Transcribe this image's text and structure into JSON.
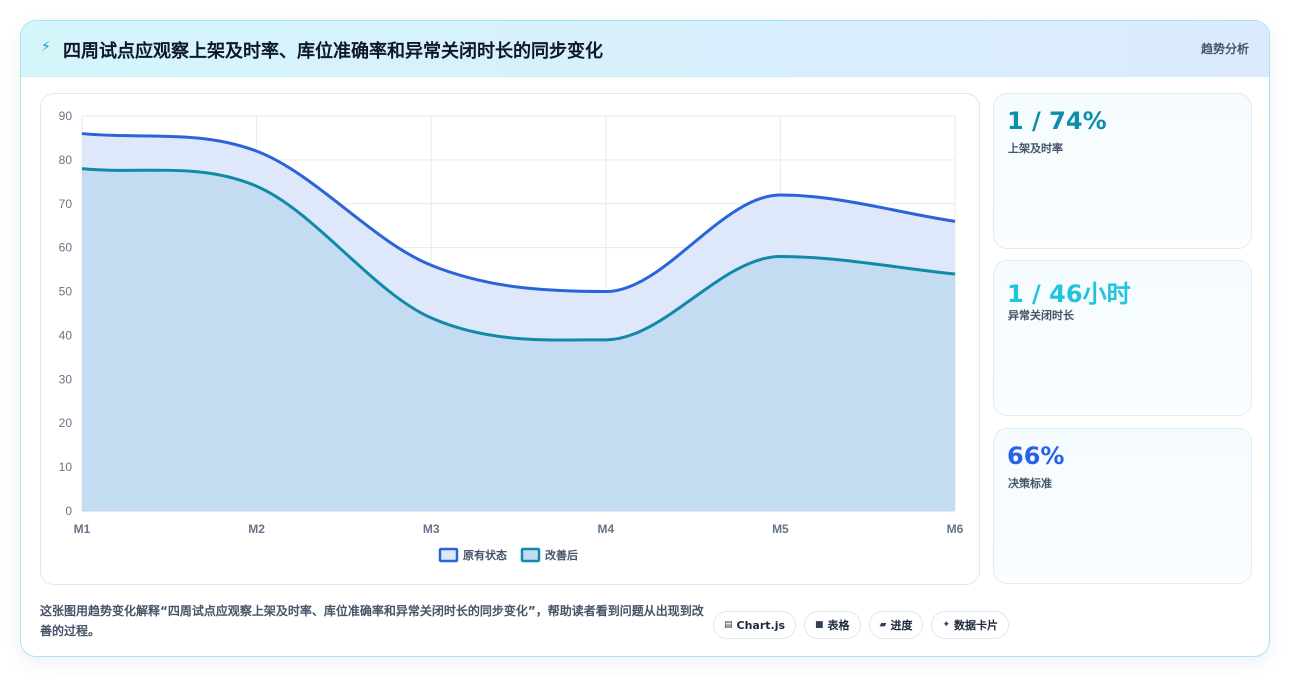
{
  "header": {
    "title": "四周试点应观察上架及时率、库位准确率和异常关闭时长的同步变化",
    "tag": "趋势分析"
  },
  "kpis": [
    {
      "value": "1 / 74%",
      "label": "上架及时率",
      "color": "#0e8fa8"
    },
    {
      "value": "1 / 46小时",
      "label": "异常关闭时长",
      "color": "#22c4dc"
    },
    {
      "value": "66%",
      "label": "决策标准",
      "color": "#2563eb"
    }
  ],
  "description": "这张图用趋势变化解释“四周试点应观察上架及时率、库位准确率和异常关闭时长的同步变化”，帮助读者看到问题从出现到改善的过程。",
  "pills": [
    {
      "icon": "chart-icon",
      "glyph": "▤",
      "label": "Chart.js"
    },
    {
      "icon": "table-icon",
      "glyph": "■",
      "label": "表格"
    },
    {
      "icon": "progress-icon",
      "glyph": "▰",
      "label": "进度"
    },
    {
      "icon": "card-icon",
      "glyph": "✦",
      "label": "数据卡片"
    }
  ],
  "chart_data": {
    "type": "area",
    "categories": [
      "M1",
      "M2",
      "M3",
      "M4",
      "M5",
      "M6"
    ],
    "series": [
      {
        "name": "原有状态",
        "values": [
          86,
          82,
          56,
          50,
          72,
          66
        ],
        "color": "#2b63d9",
        "fill": "#dfe8fb"
      },
      {
        "name": "改善后",
        "values": [
          78,
          74,
          44,
          39,
          58,
          54
        ],
        "color": "#118aa8",
        "fill": "#c3dcf2"
      }
    ],
    "ylim": [
      0,
      90
    ],
    "yticks": [
      0,
      10,
      20,
      30,
      40,
      50,
      60,
      70,
      80,
      90
    ],
    "grid": true,
    "legend": "bottom"
  }
}
